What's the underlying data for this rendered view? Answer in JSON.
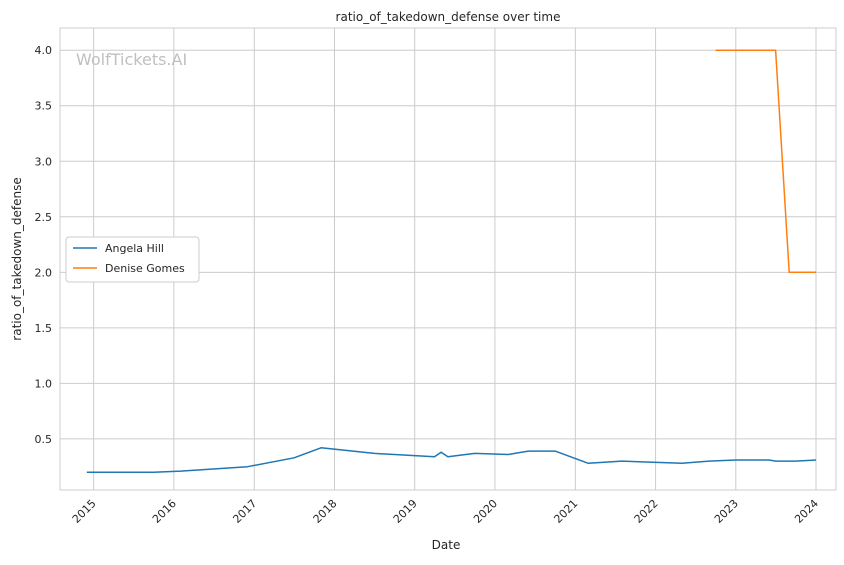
{
  "watermark": "WolfTickets.AI",
  "chart_data": {
    "type": "line",
    "title": "ratio_of_takedown_defense over time",
    "xlabel": "Date",
    "ylabel": "ratio_of_takedown_defense",
    "x_tick_labels": [
      "2015",
      "2016",
      "2017",
      "2018",
      "2019",
      "2020",
      "2021",
      "2022",
      "2023",
      "2024"
    ],
    "y_tick_labels": [
      "0.5",
      "1.0",
      "1.5",
      "2.0",
      "2.5",
      "3.0",
      "3.5",
      "4.0"
    ],
    "y_ticks": [
      0.5,
      1.0,
      1.5,
      2.0,
      2.5,
      3.0,
      3.5,
      4.0
    ],
    "xlim": [
      "2014-08-01",
      "2024-04-01"
    ],
    "ylim": [
      0.04,
      4.2
    ],
    "grid": true,
    "legend_position": "center-left",
    "series": [
      {
        "name": "Angela Hill",
        "color": "#1f77b4",
        "points": [
          [
            "2014-12-01",
            0.2
          ],
          [
            "2015-04-01",
            0.2
          ],
          [
            "2015-10-01",
            0.2
          ],
          [
            "2016-02-01",
            0.21
          ],
          [
            "2016-12-01",
            0.25
          ],
          [
            "2017-07-01",
            0.33
          ],
          [
            "2017-11-01",
            0.42
          ],
          [
            "2018-07-01",
            0.37
          ],
          [
            "2019-04-01",
            0.34
          ],
          [
            "2019-05-01",
            0.38
          ],
          [
            "2019-06-01",
            0.34
          ],
          [
            "2019-10-01",
            0.37
          ],
          [
            "2020-03-01",
            0.36
          ],
          [
            "2020-06-01",
            0.39
          ],
          [
            "2020-10-01",
            0.39
          ],
          [
            "2021-03-01",
            0.28
          ],
          [
            "2021-08-01",
            0.3
          ],
          [
            "2022-05-01",
            0.28
          ],
          [
            "2022-09-01",
            0.3
          ],
          [
            "2023-01-01",
            0.31
          ],
          [
            "2023-06-01",
            0.31
          ],
          [
            "2023-07-01",
            0.3
          ],
          [
            "2023-10-01",
            0.3
          ],
          [
            "2024-01-01",
            0.31
          ]
        ]
      },
      {
        "name": "Denise Gomes",
        "color": "#ff7f0e",
        "points": [
          [
            "2022-10-01",
            4.0
          ],
          [
            "2023-07-01",
            4.0
          ],
          [
            "2023-09-01",
            2.0
          ],
          [
            "2024-01-01",
            2.0
          ]
        ]
      }
    ]
  }
}
